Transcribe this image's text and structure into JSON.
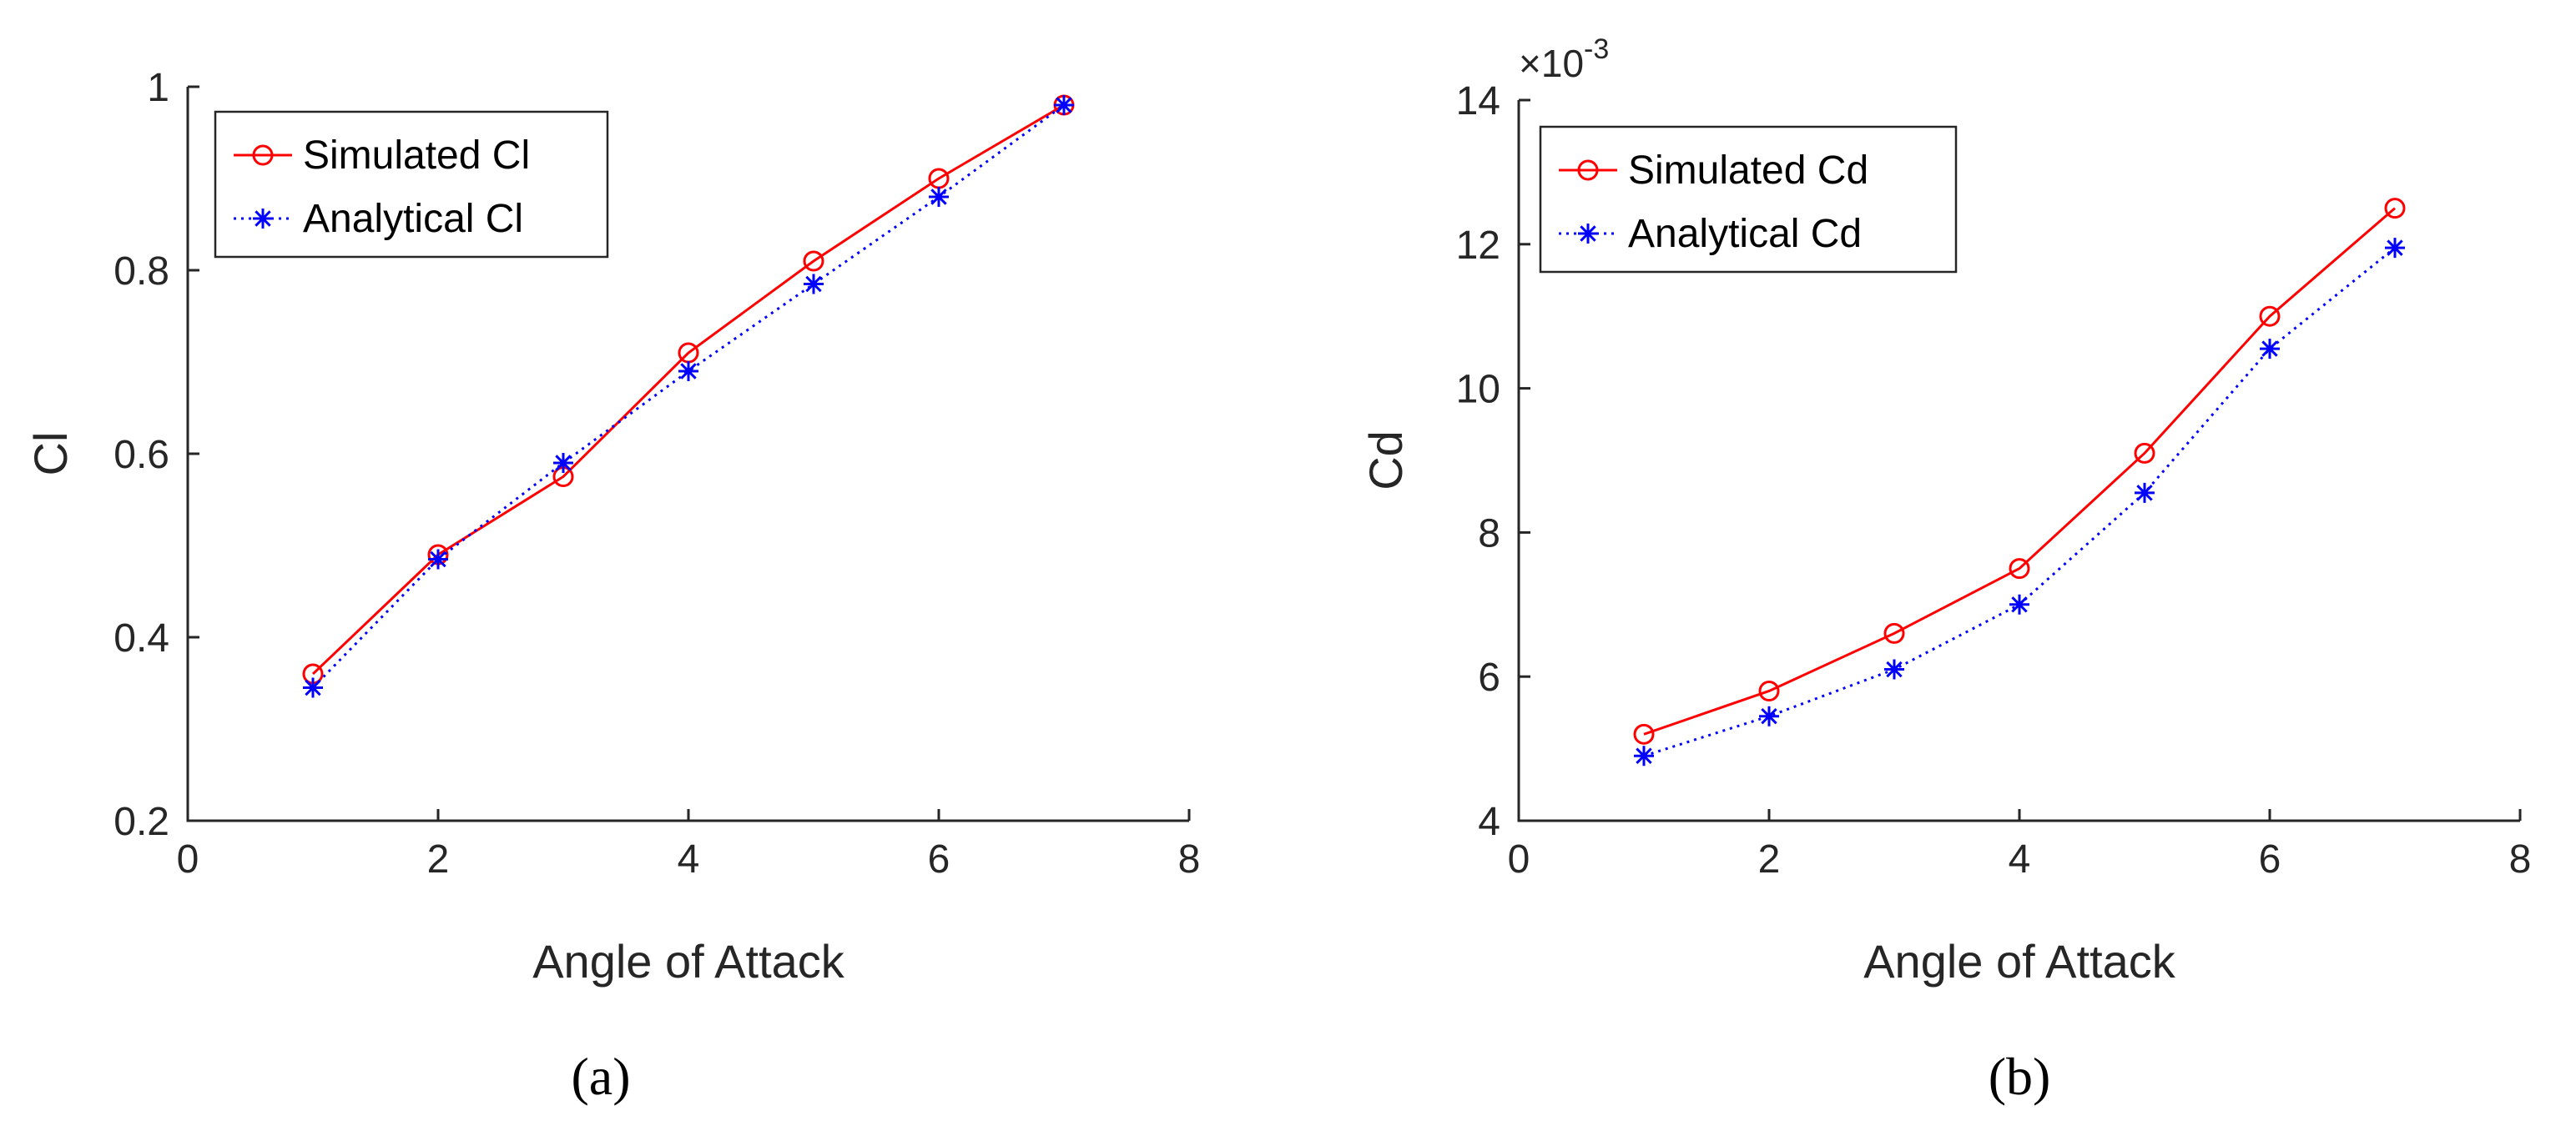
{
  "chart_data": [
    {
      "type": "line",
      "panel_label": "(a)",
      "xlabel": "Angle of Attack",
      "ylabel": "Cl",
      "xlim": [
        0,
        8
      ],
      "ylim": [
        0.2,
        1.0
      ],
      "xticks": [
        0,
        2,
        4,
        6,
        8
      ],
      "xtick_labels": [
        "0",
        "2",
        "4",
        "6",
        "8"
      ],
      "yticks": [
        0.2,
        0.4,
        0.6,
        0.8,
        1.0
      ],
      "ytick_labels": [
        "0.2",
        "0.4",
        "0.6",
        "0.8",
        "1"
      ],
      "legend_position": "top-left",
      "x": [
        1,
        2,
        3,
        4,
        5,
        6,
        7
      ],
      "series": [
        {
          "name": "Simulated Cl",
          "values": [
            0.36,
            0.49,
            0.575,
            0.71,
            0.81,
            0.9,
            0.98
          ],
          "color": "#ff0000",
          "marker": "circle",
          "line_style": "solid"
        },
        {
          "name": "Analytical Cl",
          "values": [
            0.345,
            0.485,
            0.59,
            0.69,
            0.785,
            0.88,
            0.98
          ],
          "color": "#0000ff",
          "marker": "asterisk",
          "line_style": "dotted"
        }
      ]
    },
    {
      "type": "line",
      "panel_label": "(b)",
      "xlabel": "Angle of Attack",
      "ylabel": "Cd",
      "exponent_label": "×10",
      "exponent_value": "-3",
      "xlim": [
        0,
        8
      ],
      "ylim": [
        4,
        14
      ],
      "xticks": [
        0,
        2,
        4,
        6,
        8
      ],
      "xtick_labels": [
        "0",
        "2",
        "4",
        "6",
        "8"
      ],
      "yticks": [
        4,
        6,
        8,
        10,
        12,
        14
      ],
      "ytick_labels": [
        "4",
        "6",
        "8",
        "10",
        "12",
        "14"
      ],
      "legend_position": "top-left",
      "x": [
        1,
        2,
        3,
        4,
        5,
        6,
        7
      ],
      "series": [
        {
          "name": "Simulated Cd",
          "values": [
            5.2,
            5.8,
            6.6,
            7.5,
            9.1,
            11.0,
            12.5
          ],
          "color": "#ff0000",
          "marker": "circle",
          "line_style": "solid"
        },
        {
          "name": "Analytical Cd",
          "values": [
            4.9,
            5.45,
            6.1,
            7.0,
            8.55,
            10.55,
            11.95
          ],
          "color": "#0000ff",
          "marker": "asterisk",
          "line_style": "dotted"
        }
      ]
    }
  ]
}
